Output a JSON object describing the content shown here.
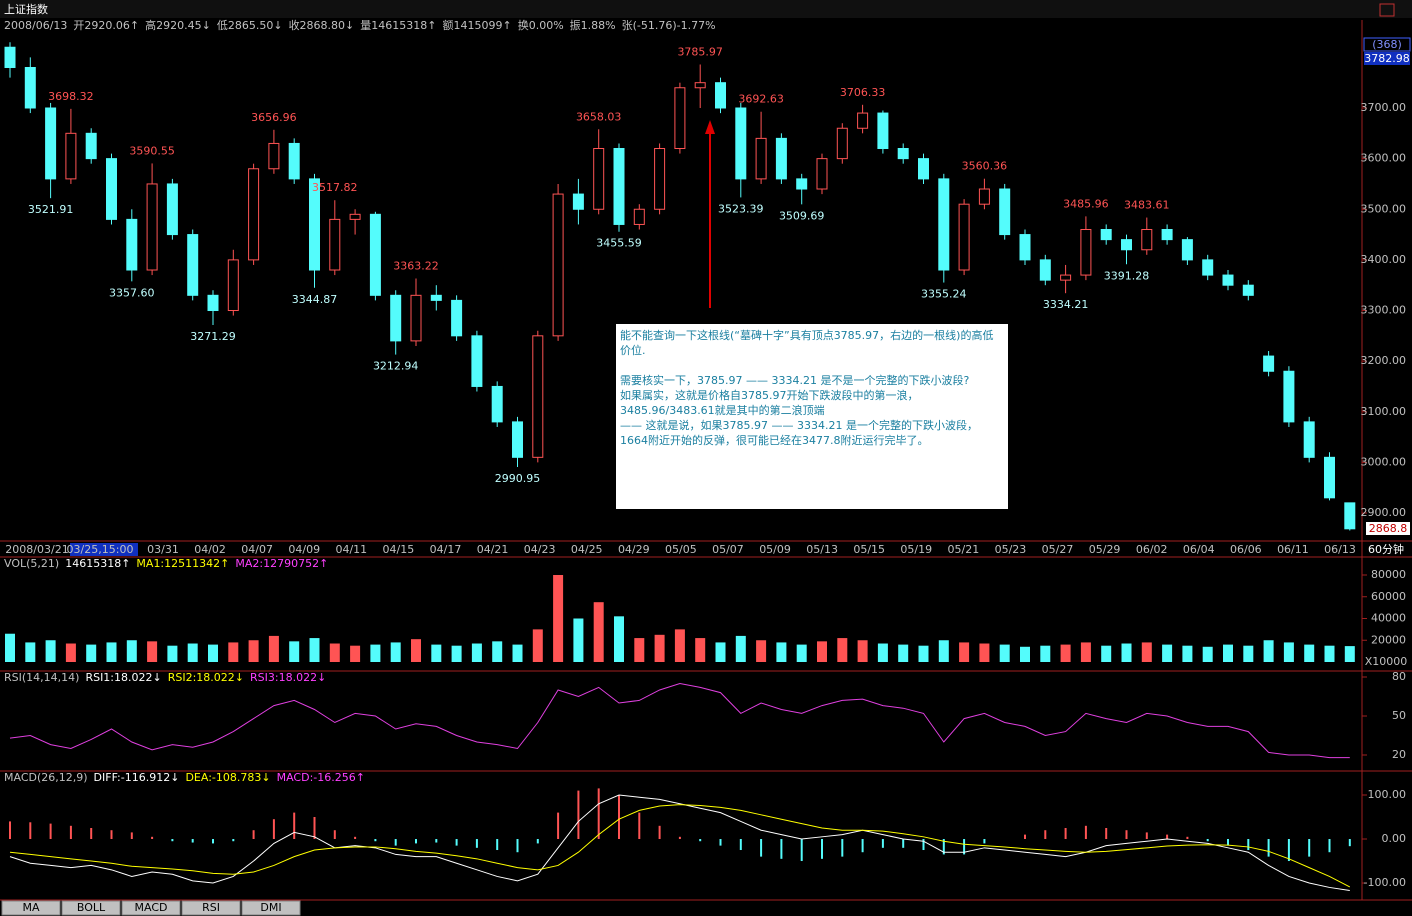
{
  "window": {
    "title": "上证指数",
    "period": "60分钟"
  },
  "info_bar": [
    "2008/06/13",
    "开2920.06↑",
    "高2920.45↓",
    "低2865.50↓",
    "收2868.80↓",
    "量14615318↑",
    "额1415099↑",
    "换0.00%",
    "振1.88%",
    "张(-51.76)-1.77%"
  ],
  "price_box": {
    "count": "(368)",
    "top": "3782.98",
    "last": "2868.8"
  },
  "annotation": {
    "question": "能不能查询一下这根线(“墓碑十字”具有顶点3785.97，右边的一根线)的高低价位.",
    "lines": [
      "需要核实一下，3785.97 —— 3334.21 是不是一个完整的下跌小波段?",
      "如果属实，这就是价格自3785.97开始下跌波段中的第一浪，3485.96/3483.61就是其中的第二浪顶端",
      "—— 这就是说，如果3785.97 —— 3334.21 是一个完整的下跌小波段，1664附近开始的反弹，很可能已经在3477.8附近运行完毕了。"
    ]
  },
  "tabs": [
    "MA",
    "BOLL",
    "MACD",
    "RSI",
    "DMI"
  ],
  "chart_data": [
    {
      "type": "candlestick",
      "up_color": "#ff5454",
      "down_color": "#54fcfc",
      "dates": [
        "2008/03/21",
        "03/25,15:00",
        "03/31",
        "04/02",
        "04/07",
        "04/09",
        "04/11",
        "04/15",
        "04/17",
        "04/21",
        "04/23",
        "04/25",
        "04/29",
        "05/05",
        "05/07",
        "05/09",
        "05/13",
        "05/15",
        "05/19",
        "05/21",
        "05/23",
        "05/27",
        "05/29",
        "06/02",
        "06/04",
        "06/06",
        "06/11",
        "06/13"
      ],
      "open": [
        3820,
        3780,
        3700,
        3560,
        3650,
        3600,
        3480,
        3380,
        3550,
        3450,
        3330,
        3300,
        3400,
        3580,
        3630,
        3560,
        3380,
        3480,
        3490,
        3330,
        3240,
        3330,
        3320,
        3250,
        3150,
        3080,
        3010,
        3250,
        3530,
        3500,
        3620,
        3470,
        3500,
        3620,
        3740,
        3750,
        3700,
        3560,
        3640,
        3560,
        3540,
        3600,
        3660,
        3690,
        3620,
        3600,
        3560,
        3380,
        3510,
        3540,
        3450,
        3400,
        3360,
        3370,
        3460,
        3440,
        3420,
        3460,
        3440,
        3400,
        3370,
        3350,
        3210,
        3180,
        3080,
        3010,
        2920.06
      ],
      "high": [
        3830,
        3800,
        3710,
        3698.32,
        3660,
        3610,
        3500,
        3590.55,
        3560,
        3460,
        3340,
        3420,
        3590,
        3656.96,
        3640,
        3570,
        3517.82,
        3500,
        3495,
        3340,
        3363.22,
        3350,
        3330,
        3260,
        3160,
        3090,
        3260,
        3550,
        3560,
        3658.03,
        3630,
        3510,
        3630,
        3750,
        3785.97,
        3760,
        3710,
        3692.63,
        3650,
        3570,
        3610,
        3670,
        3706.33,
        3695,
        3630,
        3610,
        3570,
        3520,
        3560.36,
        3550,
        3460,
        3410,
        3390,
        3485.96,
        3470,
        3450,
        3483.61,
        3470,
        3445,
        3410,
        3380,
        3360,
        3220,
        3190,
        3090,
        3020,
        2920.45
      ],
      "low": [
        3760,
        3690,
        3521.91,
        3550,
        3590,
        3470,
        3357.6,
        3370,
        3440,
        3320,
        3271.29,
        3290,
        3390,
        3570,
        3550,
        3344.87,
        3370,
        3450,
        3320,
        3212.94,
        3230,
        3300,
        3240,
        3140,
        3070,
        2990.95,
        3000,
        3240,
        3470,
        3490,
        3455.59,
        3460,
        3490,
        3610,
        3700,
        3690,
        3523.39,
        3550,
        3550,
        3509.69,
        3530,
        3590,
        3650,
        3610,
        3590,
        3550,
        3355.24,
        3370,
        3500,
        3440,
        3390,
        3350,
        3334.21,
        3360,
        3430,
        3391.28,
        3410,
        3430,
        3390,
        3360,
        3340,
        3320,
        3170,
        3070,
        3000,
        2925,
        2865.5
      ],
      "close": [
        3780,
        3700,
        3560,
        3650,
        3600,
        3480,
        3380,
        3550,
        3450,
        3330,
        3300,
        3400,
        3580,
        3630,
        3560,
        3380,
        3480,
        3490,
        3330,
        3240,
        3330,
        3320,
        3250,
        3150,
        3080,
        3010,
        3250,
        3530,
        3500,
        3620,
        3470,
        3500,
        3620,
        3740,
        3750,
        3700,
        3560,
        3640,
        3560,
        3540,
        3600,
        3660,
        3690,
        3620,
        3600,
        3560,
        3380,
        3510,
        3540,
        3450,
        3400,
        3360,
        3370,
        3460,
        3440,
        3420,
        3460,
        3440,
        3400,
        3370,
        3350,
        3330,
        3180,
        3080,
        3010,
        2930,
        2868.8
      ],
      "pivot_labels": [
        "3521.91",
        "3698.32",
        "3357.60",
        "3590.55",
        "3271.29",
        "3656.96",
        "3344.87",
        "3517.82",
        "3212.94",
        "3363.22",
        "2990.95",
        "3658.03",
        "3455.59",
        "3785.97",
        "3523.39",
        "3692.63",
        "3509.69",
        "3706.33",
        "3355.24",
        "3560.36",
        "3334.21",
        "3485.96",
        "3391.28",
        "3483.61"
      ],
      "ylim": [
        2846.7,
        3844.2
      ],
      "yticks": [
        {
          "value": 2900,
          "label": "2900.00"
        },
        {
          "value": 3000,
          "label": "3000.00"
        },
        {
          "value": 3100,
          "label": "3100.00"
        },
        {
          "value": 3200,
          "label": "3200.00"
        },
        {
          "value": 3300,
          "label": "3300.00"
        },
        {
          "value": 3400,
          "label": "3400.00"
        },
        {
          "value": 3500,
          "label": "3500.00"
        },
        {
          "value": 3600,
          "label": "3600.00"
        },
        {
          "value": 3700,
          "label": "3700.00"
        }
      ]
    },
    {
      "type": "volume",
      "header": [
        "VOL(5,21)",
        "14615318↑",
        "MA1:12511342↑",
        "MA2:12790752↑"
      ],
      "unit": "X10000",
      "values": [
        26000,
        18000,
        20000,
        17000,
        16000,
        18000,
        20000,
        19000,
        15000,
        17000,
        16000,
        18000,
        20000,
        24000,
        19000,
        22000,
        17000,
        15000,
        16000,
        18000,
        21000,
        16000,
        15000,
        17000,
        19000,
        16000,
        30000,
        80000,
        40000,
        55000,
        42000,
        22000,
        25000,
        30000,
        22000,
        18000,
        24000,
        20000,
        18000,
        16000,
        19000,
        22000,
        20000,
        17000,
        16000,
        15000,
        20000,
        18000,
        17000,
        16000,
        14000,
        15000,
        16000,
        18000,
        15000,
        17000,
        18000,
        16000,
        15000,
        14000,
        16000,
        15000,
        20000,
        18000,
        16000,
        15000,
        14615
      ],
      "ylim": [
        0,
        93800
      ],
      "yticks": [
        20000,
        40000,
        60000,
        80000
      ]
    },
    {
      "type": "line",
      "header": [
        "RSI(14,14,14)",
        "RSI1:18.022↓",
        "RSI2:18.022↓",
        "RSI3:18.022↓"
      ],
      "color": "#e040e0",
      "values": [
        33,
        35,
        28,
        25,
        32,
        40,
        30,
        24,
        28,
        26,
        30,
        38,
        48,
        58,
        62,
        55,
        45,
        52,
        50,
        40,
        44,
        42,
        35,
        30,
        28,
        25,
        45,
        70,
        65,
        72,
        60,
        62,
        70,
        75,
        72,
        68,
        52,
        60,
        55,
        52,
        58,
        62,
        63,
        58,
        56,
        52,
        30,
        48,
        52,
        45,
        42,
        35,
        38,
        52,
        48,
        45,
        52,
        50,
        45,
        42,
        42,
        38,
        22,
        20,
        20,
        18,
        18.022
      ],
      "ylim": [
        10,
        82.3
      ],
      "yticks": [
        20,
        50,
        80
      ]
    },
    {
      "type": "macd",
      "header": [
        "MACD(26,12,9)",
        "DIFF:-116.912↓",
        "DEA:-108.783↓",
        "MACD:-16.256↑"
      ],
      "series": [
        {
          "name": "DIFF",
          "color": "#ffffff",
          "values": [
            -40,
            -55,
            -60,
            -65,
            -60,
            -70,
            -85,
            -75,
            -80,
            -95,
            -100,
            -85,
            -50,
            -10,
            15,
            5,
            -20,
            -15,
            -20,
            -35,
            -40,
            -40,
            -55,
            -70,
            -85,
            -95,
            -80,
            -20,
            40,
            80,
            100,
            95,
            90,
            80,
            70,
            60,
            40,
            20,
            10,
            0,
            5,
            10,
            20,
            10,
            0,
            -5,
            -30,
            -30,
            -20,
            -25,
            -30,
            -35,
            -40,
            -30,
            -15,
            -10,
            -5,
            0,
            -5,
            -10,
            -20,
            -30,
            -60,
            -85,
            -100,
            -110,
            -116.912
          ]
        },
        {
          "name": "DEA",
          "color": "#ffff00",
          "values": [
            -30,
            -35,
            -40,
            -45,
            -50,
            -55,
            -62,
            -65,
            -68,
            -72,
            -78,
            -80,
            -75,
            -60,
            -40,
            -25,
            -20,
            -18,
            -18,
            -22,
            -28,
            -32,
            -38,
            -45,
            -55,
            -65,
            -70,
            -60,
            -30,
            10,
            45,
            65,
            75,
            78,
            76,
            72,
            65,
            55,
            45,
            35,
            25,
            20,
            20,
            18,
            12,
            5,
            -5,
            -12,
            -15,
            -18,
            -22,
            -25,
            -28,
            -30,
            -28,
            -24,
            -20,
            -16,
            -14,
            -13,
            -14,
            -18,
            -28,
            -45,
            -65,
            -85,
            -108.783
          ]
        },
        {
          "name": "MACD",
          "color": "#ff5454",
          "values": [
            40,
            38,
            35,
            30,
            25,
            20,
            15,
            5,
            -5,
            -8,
            -10,
            -5,
            20,
            45,
            60,
            50,
            20,
            5,
            -5,
            -15,
            -10,
            -8,
            -15,
            -20,
            -25,
            -30,
            -10,
            60,
            110,
            115,
            100,
            60,
            30,
            5,
            -5,
            -15,
            -25,
            -40,
            -45,
            -50,
            -45,
            -40,
            -30,
            -20,
            -20,
            -25,
            -35,
            -35,
            -10,
            0,
            10,
            20,
            25,
            30,
            25,
            20,
            15,
            10,
            5,
            -5,
            -15,
            -25,
            -40,
            -50,
            -40,
            -30,
            -16.256
          ]
        }
      ],
      "ylim": [
        -134,
        147.7
      ],
      "yticks": [
        {
          "value": 100,
          "label": "100.00"
        },
        {
          "value": 0,
          "label": "0.00"
        },
        {
          "value": -100,
          "label": "-100.00"
        }
      ]
    }
  ]
}
